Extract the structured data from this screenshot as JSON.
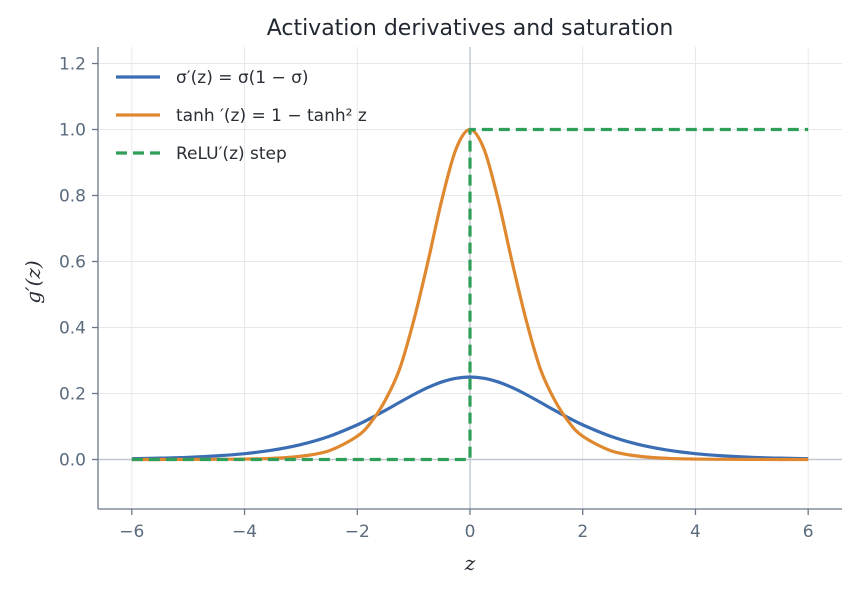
{
  "chart_data": {
    "type": "line",
    "title": "Activation derivatives and saturation",
    "xlabel": "z",
    "ylabel": "g′(z)",
    "xlim": [
      -6.6,
      6.6
    ],
    "ylim": [
      -0.15,
      1.25
    ],
    "xticks": [
      -6,
      -4,
      -2,
      0,
      2,
      4,
      6
    ],
    "xtick_labels": [
      "−6",
      "−4",
      "−2",
      "0",
      "2",
      "4",
      "6"
    ],
    "yticks": [
      0.0,
      0.2,
      0.4,
      0.6,
      0.8,
      1.0,
      1.2
    ],
    "ytick_labels": [
      "0.0",
      "0.2",
      "0.4",
      "0.6",
      "0.8",
      "1.0",
      "1.2"
    ],
    "grid": true,
    "legend_position": "top-left",
    "x": [
      -6,
      -5.5,
      -5,
      -4.5,
      -4,
      -3.5,
      -3,
      -2.5,
      -2,
      -1.75,
      -1.5,
      -1.25,
      -1,
      -0.75,
      -0.5,
      -0.25,
      0,
      0.25,
      0.5,
      0.75,
      1,
      1.25,
      1.5,
      1.75,
      2,
      2.5,
      3,
      3.5,
      4,
      4.5,
      5,
      5.5,
      6
    ],
    "series": [
      {
        "name": "σ′(z) = σ(1 − σ)",
        "color": "#3a6db3",
        "style": "solid",
        "values": [
          0.0025,
          0.0041,
          0.0066,
          0.0109,
          0.0177,
          0.0285,
          0.0452,
          0.0701,
          0.105,
          0.1262,
          0.1491,
          0.1731,
          0.1966,
          0.2179,
          0.235,
          0.2461,
          0.25,
          0.2461,
          0.235,
          0.2179,
          0.1966,
          0.1731,
          0.1491,
          0.1262,
          0.105,
          0.0701,
          0.0452,
          0.0285,
          0.0177,
          0.0109,
          0.0066,
          0.0041,
          0.0025
        ]
      },
      {
        "name": "tanh ′(z) = 1 − tanh² z",
        "color": "#e0882f",
        "style": "solid",
        "values": [
          0.0,
          0.0001,
          0.0002,
          0.0005,
          0.0013,
          0.0036,
          0.0099,
          0.0266,
          0.0707,
          0.1143,
          0.1807,
          0.2737,
          0.42,
          0.5966,
          0.7864,
          0.94,
          1.0,
          0.94,
          0.7864,
          0.5966,
          0.42,
          0.2737,
          0.1807,
          0.1143,
          0.0707,
          0.0266,
          0.0099,
          0.0036,
          0.0013,
          0.0005,
          0.0002,
          0.0001,
          0.0
        ]
      },
      {
        "name": "ReLU′(z)  step",
        "color": "#2f9e58",
        "style": "dashed",
        "values": [
          0,
          0,
          0,
          0,
          0,
          0,
          0,
          0,
          0,
          0,
          0,
          0,
          0,
          0,
          0,
          0,
          1,
          1,
          1,
          1,
          1,
          1,
          1,
          1,
          1,
          1,
          1,
          1,
          1,
          1,
          1,
          1,
          1
        ]
      }
    ]
  }
}
